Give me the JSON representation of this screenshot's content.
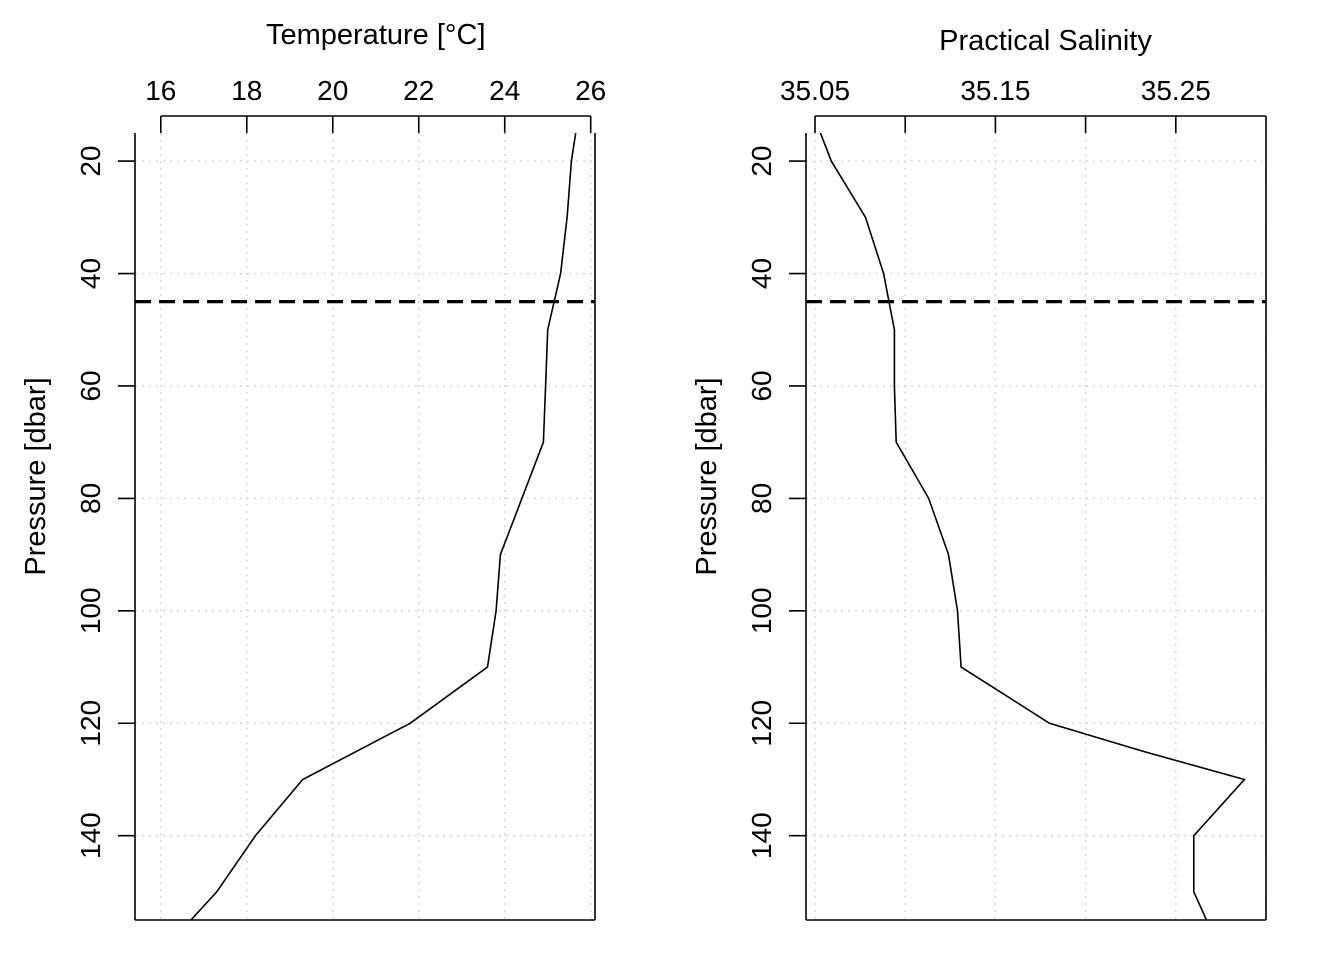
{
  "chart_data": [
    {
      "type": "line",
      "title": "",
      "xlabel": "Temperature [°C]",
      "ylabel": "Pressure [dbar]",
      "x_axis_position": "top",
      "y_axis_reversed": true,
      "xlim": [
        15.4,
        26.1
      ],
      "ylim": [
        15,
        155
      ],
      "xticks": [
        16,
        18,
        20,
        22,
        24,
        26
      ],
      "xtick_labels": [
        "16",
        "18",
        "20",
        "22",
        "24",
        "26"
      ],
      "yticks": [
        20,
        40,
        60,
        80,
        100,
        120,
        140
      ],
      "ytick_labels": [
        "20",
        "40",
        "60",
        "80",
        "100",
        "120",
        "140"
      ],
      "grid": true,
      "reference_line": {
        "y": 45,
        "style": "dashed"
      },
      "series": [
        {
          "x": [
            25.65,
            25.55,
            25.45,
            25.3,
            25.0,
            24.95,
            24.9,
            24.4,
            23.9,
            23.8,
            23.6,
            21.8,
            19.3,
            18.2,
            17.3,
            16.7
          ],
          "y": [
            15,
            20,
            30,
            40,
            50,
            60,
            70,
            80,
            90,
            100,
            110,
            120,
            130,
            140,
            150,
            155
          ]
        }
      ]
    },
    {
      "type": "line",
      "title": "",
      "xlabel": "Practical Salinity",
      "ylabel": "Pressure [dbar]",
      "x_axis_position": "top",
      "y_axis_reversed": true,
      "xlim": [
        35.045,
        35.3
      ],
      "ylim": [
        15,
        155
      ],
      "xticks": [
        35.05,
        35.1,
        35.15,
        35.2,
        35.25,
        35.3
      ],
      "xtick_labels": [
        "35.05",
        "",
        "35.15",
        "",
        "35.25",
        ""
      ],
      "yticks": [
        20,
        40,
        60,
        80,
        100,
        120,
        140
      ],
      "ytick_labels": [
        "20",
        "40",
        "60",
        "80",
        "100",
        "120",
        "140"
      ],
      "grid": true,
      "reference_line": {
        "y": 45,
        "style": "dashed"
      },
      "series": [
        {
          "x": [
            35.053,
            35.059,
            35.078,
            35.088,
            35.094,
            35.094,
            35.095,
            35.113,
            35.124,
            35.129,
            35.131,
            35.18,
            35.232,
            35.288,
            35.26,
            35.26,
            35.267
          ],
          "y": [
            15,
            20,
            30,
            40,
            50,
            60,
            70,
            80,
            90,
            100,
            110,
            120,
            125,
            130,
            140,
            150,
            155
          ]
        }
      ]
    }
  ]
}
